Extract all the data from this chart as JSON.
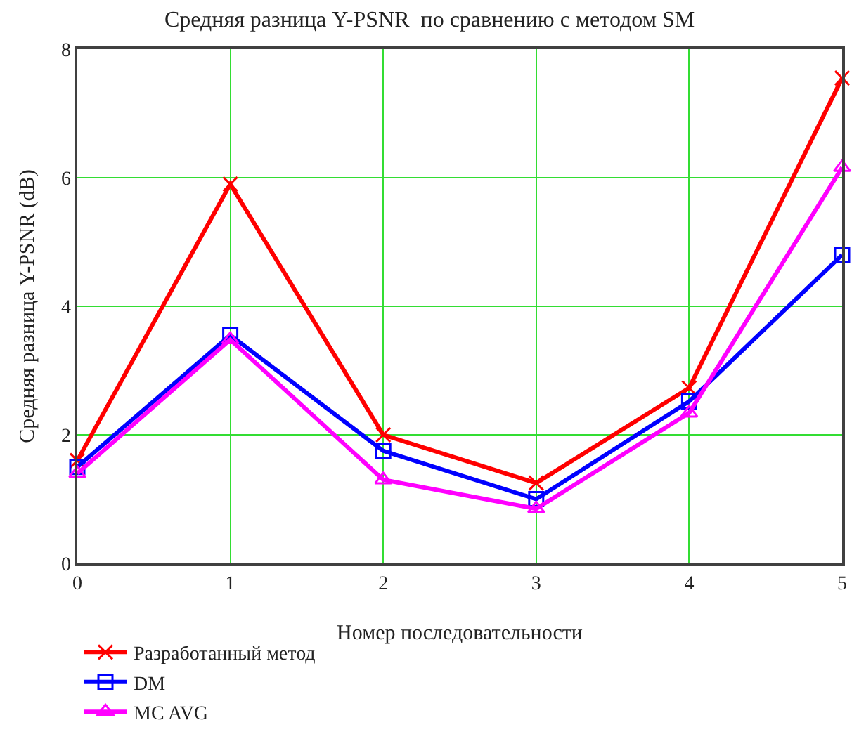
{
  "chart_data": {
    "type": "line",
    "title": "Средняя разница Y-PSNR  по сравнению с методом SM",
    "xlabel": "Номер последовательности",
    "ylabel": "Средняя разница Y-PSNR (dB)",
    "x": [
      0,
      1,
      2,
      3,
      4,
      5
    ],
    "series": [
      {
        "name": "Разработанный метод",
        "color": "#ff0000",
        "marker": "cross",
        "values": [
          1.6,
          5.9,
          2.0,
          1.25,
          2.73,
          7.55
        ]
      },
      {
        "name": "DM",
        "color": "#0000ff",
        "marker": "square",
        "values": [
          1.5,
          3.55,
          1.75,
          1.0,
          2.52,
          4.8
        ]
      },
      {
        "name": "MC AVG",
        "color": "#ff00ff",
        "marker": "triangle",
        "values": [
          1.4,
          3.48,
          1.3,
          0.85,
          2.34,
          6.16
        ]
      }
    ],
    "xlim": [
      0,
      5
    ],
    "ylim": [
      0,
      8
    ],
    "xticks": [
      0,
      1,
      2,
      3,
      4,
      5
    ],
    "yticks": [
      0,
      2,
      4,
      6,
      8
    ],
    "grid": true,
    "legend": "bottom left",
    "line_style": "solid"
  }
}
